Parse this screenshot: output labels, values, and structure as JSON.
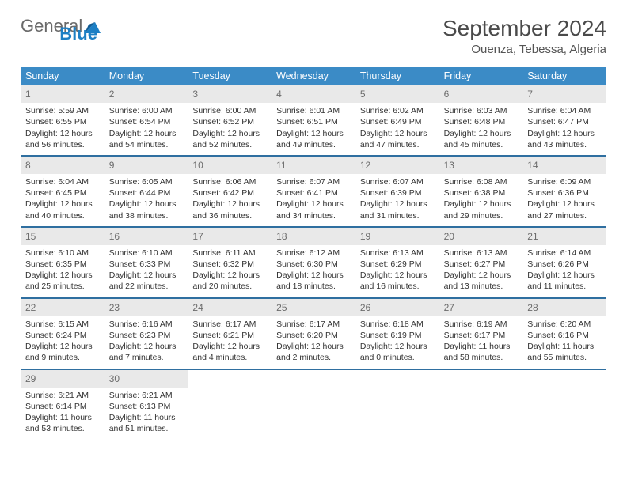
{
  "logo": {
    "word1": "General",
    "word2": "Blue"
  },
  "title": {
    "month": "September 2024",
    "location": "Ouenza, Tebessa, Algeria"
  },
  "dow": [
    "Sunday",
    "Monday",
    "Tuesday",
    "Wednesday",
    "Thursday",
    "Friday",
    "Saturday"
  ],
  "colors": {
    "header_blue": "#3b8bc6",
    "divider_blue": "#2f6fa0",
    "cell_header_bg": "#e9e9e9",
    "cell_header_fg": "#6c6c6c",
    "body_fg": "#3a3a3a",
    "page_bg": "#ffffff"
  },
  "days": [
    {
      "n": 1,
      "sunrise": "5:59 AM",
      "sunset": "6:55 PM",
      "daylight": "12 hours and 56 minutes."
    },
    {
      "n": 2,
      "sunrise": "6:00 AM",
      "sunset": "6:54 PM",
      "daylight": "12 hours and 54 minutes."
    },
    {
      "n": 3,
      "sunrise": "6:00 AM",
      "sunset": "6:52 PM",
      "daylight": "12 hours and 52 minutes."
    },
    {
      "n": 4,
      "sunrise": "6:01 AM",
      "sunset": "6:51 PM",
      "daylight": "12 hours and 49 minutes."
    },
    {
      "n": 5,
      "sunrise": "6:02 AM",
      "sunset": "6:49 PM",
      "daylight": "12 hours and 47 minutes."
    },
    {
      "n": 6,
      "sunrise": "6:03 AM",
      "sunset": "6:48 PM",
      "daylight": "12 hours and 45 minutes."
    },
    {
      "n": 7,
      "sunrise": "6:04 AM",
      "sunset": "6:47 PM",
      "daylight": "12 hours and 43 minutes."
    },
    {
      "n": 8,
      "sunrise": "6:04 AM",
      "sunset": "6:45 PM",
      "daylight": "12 hours and 40 minutes."
    },
    {
      "n": 9,
      "sunrise": "6:05 AM",
      "sunset": "6:44 PM",
      "daylight": "12 hours and 38 minutes."
    },
    {
      "n": 10,
      "sunrise": "6:06 AM",
      "sunset": "6:42 PM",
      "daylight": "12 hours and 36 minutes."
    },
    {
      "n": 11,
      "sunrise": "6:07 AM",
      "sunset": "6:41 PM",
      "daylight": "12 hours and 34 minutes."
    },
    {
      "n": 12,
      "sunrise": "6:07 AM",
      "sunset": "6:39 PM",
      "daylight": "12 hours and 31 minutes."
    },
    {
      "n": 13,
      "sunrise": "6:08 AM",
      "sunset": "6:38 PM",
      "daylight": "12 hours and 29 minutes."
    },
    {
      "n": 14,
      "sunrise": "6:09 AM",
      "sunset": "6:36 PM",
      "daylight": "12 hours and 27 minutes."
    },
    {
      "n": 15,
      "sunrise": "6:10 AM",
      "sunset": "6:35 PM",
      "daylight": "12 hours and 25 minutes."
    },
    {
      "n": 16,
      "sunrise": "6:10 AM",
      "sunset": "6:33 PM",
      "daylight": "12 hours and 22 minutes."
    },
    {
      "n": 17,
      "sunrise": "6:11 AM",
      "sunset": "6:32 PM",
      "daylight": "12 hours and 20 minutes."
    },
    {
      "n": 18,
      "sunrise": "6:12 AM",
      "sunset": "6:30 PM",
      "daylight": "12 hours and 18 minutes."
    },
    {
      "n": 19,
      "sunrise": "6:13 AM",
      "sunset": "6:29 PM",
      "daylight": "12 hours and 16 minutes."
    },
    {
      "n": 20,
      "sunrise": "6:13 AM",
      "sunset": "6:27 PM",
      "daylight": "12 hours and 13 minutes."
    },
    {
      "n": 21,
      "sunrise": "6:14 AM",
      "sunset": "6:26 PM",
      "daylight": "12 hours and 11 minutes."
    },
    {
      "n": 22,
      "sunrise": "6:15 AM",
      "sunset": "6:24 PM",
      "daylight": "12 hours and 9 minutes."
    },
    {
      "n": 23,
      "sunrise": "6:16 AM",
      "sunset": "6:23 PM",
      "daylight": "12 hours and 7 minutes."
    },
    {
      "n": 24,
      "sunrise": "6:17 AM",
      "sunset": "6:21 PM",
      "daylight": "12 hours and 4 minutes."
    },
    {
      "n": 25,
      "sunrise": "6:17 AM",
      "sunset": "6:20 PM",
      "daylight": "12 hours and 2 minutes."
    },
    {
      "n": 26,
      "sunrise": "6:18 AM",
      "sunset": "6:19 PM",
      "daylight": "12 hours and 0 minutes."
    },
    {
      "n": 27,
      "sunrise": "6:19 AM",
      "sunset": "6:17 PM",
      "daylight": "11 hours and 58 minutes."
    },
    {
      "n": 28,
      "sunrise": "6:20 AM",
      "sunset": "6:16 PM",
      "daylight": "11 hours and 55 minutes."
    },
    {
      "n": 29,
      "sunrise": "6:21 AM",
      "sunset": "6:14 PM",
      "daylight": "11 hours and 53 minutes."
    },
    {
      "n": 30,
      "sunrise": "6:21 AM",
      "sunset": "6:13 PM",
      "daylight": "11 hours and 51 minutes."
    }
  ],
  "labels": {
    "sunrise": "Sunrise:",
    "sunset": "Sunset:",
    "daylight": "Daylight:"
  },
  "layout": {
    "first_dow_index": 0,
    "weeks": 5,
    "cols": 7
  }
}
